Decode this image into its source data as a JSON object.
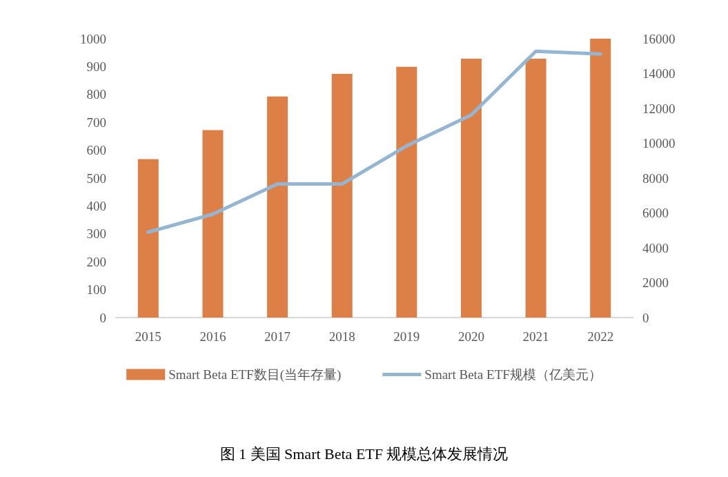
{
  "chart_data": {
    "type": "bar",
    "title": "图 1 美国 Smart Beta ETF 规模总体发展情况",
    "categories": [
      "2015",
      "2016",
      "2017",
      "2018",
      "2019",
      "2020",
      "2021",
      "2022"
    ],
    "series": [
      {
        "name": "Smart Beta ETF数目(当年存量)",
        "color": "#dd8047",
        "values": [
          568,
          672,
          793,
          874,
          899,
          928,
          928,
          1000
        ]
      },
      {
        "name": "Smart Beta ETF规模（亿美元）",
        "type": "line",
        "axis": "y2",
        "color": "#94b6d2",
        "values": [
          4900,
          5930,
          7660,
          7660,
          9850,
          11620,
          15280,
          15120
        ]
      }
    ],
    "ylim": [
      0,
      1000
    ],
    "yticks": [
      0,
      100,
      200,
      300,
      400,
      500,
      600,
      700,
      800,
      900,
      1000
    ],
    "y2lim": [
      0,
      16000
    ],
    "y2ticks": [
      0,
      2000,
      4000,
      6000,
      8000,
      10000,
      12000,
      14000,
      16000
    ],
    "grid": false,
    "legend": "bottom",
    "line_style": "solid"
  }
}
